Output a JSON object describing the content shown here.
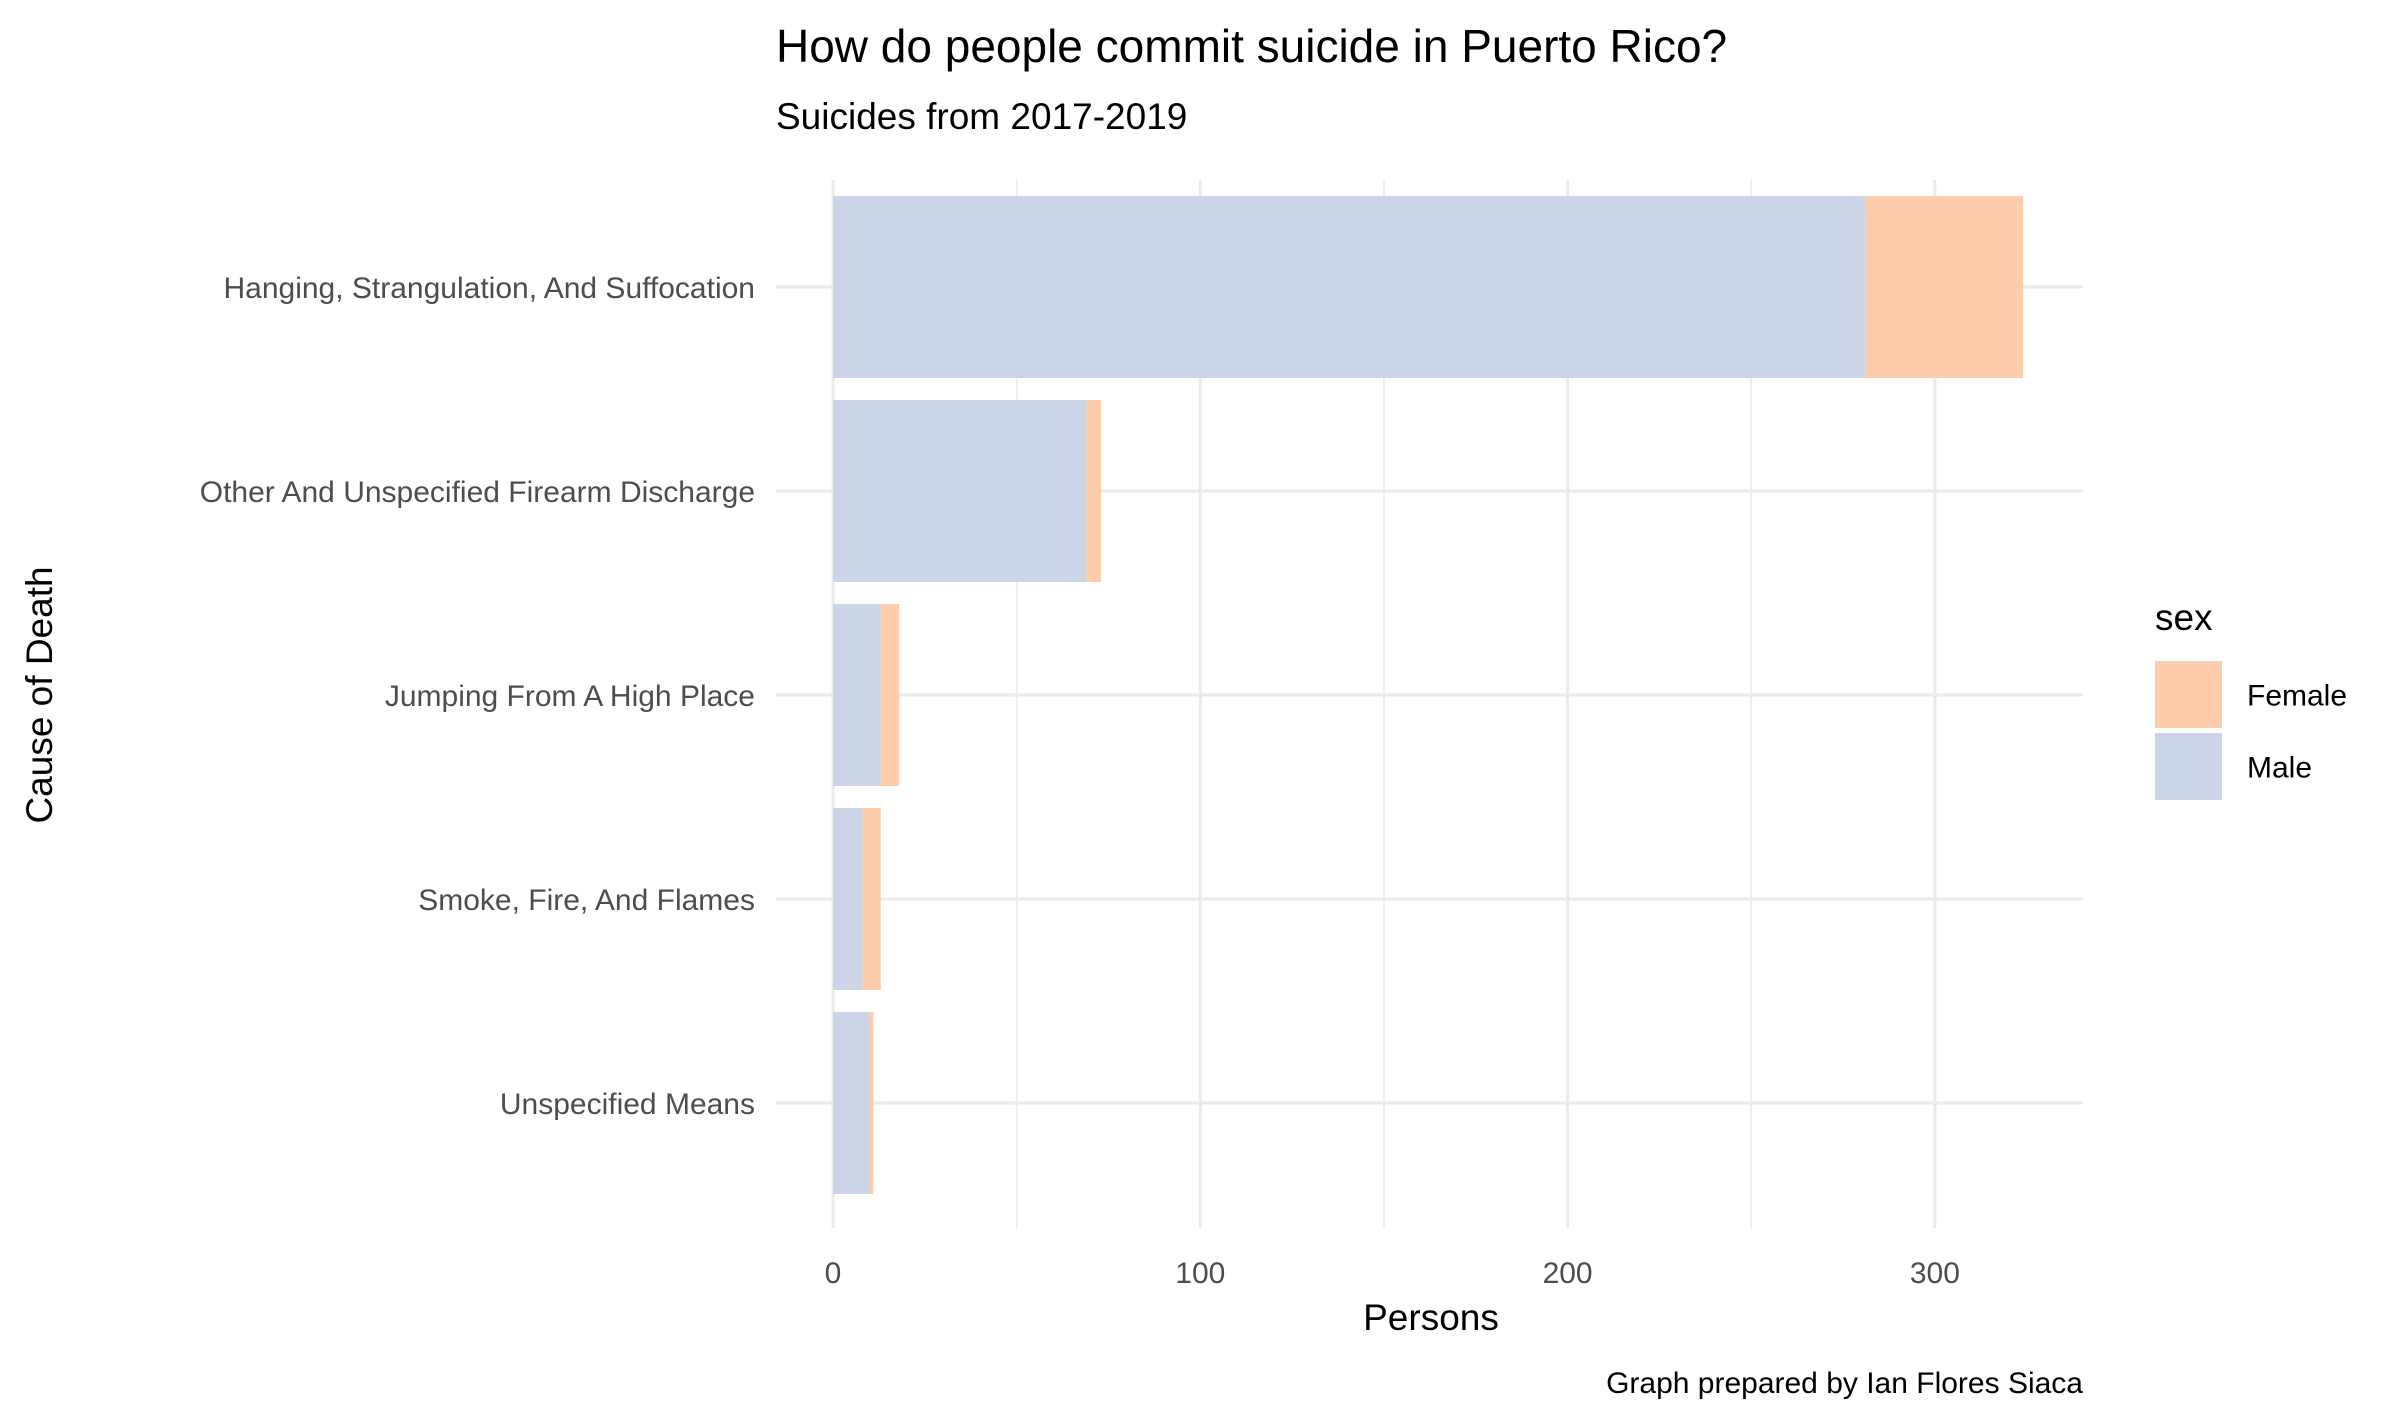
{
  "chart_data": {
    "type": "bar",
    "orientation": "horizontal",
    "stacked": true,
    "title": "How do people commit suicide in Puerto Rico?",
    "subtitle": "Suicides from 2017-2019",
    "xlabel": "Persons",
    "ylabel": "Cause of Death",
    "caption": "Graph prepared by Ian Flores Siaca",
    "categories": [
      "Hanging, Strangulation, And Suffocation",
      "Other And Unspecified Firearm Discharge",
      "Jumping From A High Place",
      "Smoke, Fire, And Flames",
      "Unspecified Means"
    ],
    "series": [
      {
        "name": "Male",
        "values": [
          281,
          69,
          13,
          8,
          10
        ],
        "color": "#cbd5e7"
      },
      {
        "name": "Female",
        "values": [
          43,
          4,
          5,
          5,
          1
        ],
        "color": "#fdcdac"
      }
    ],
    "xlim": [
      0,
      340
    ],
    "xticks": [
      0,
      100,
      200,
      300
    ],
    "xtick_labels": [
      "0",
      "100",
      "200",
      "300"
    ],
    "grid": true,
    "legend": {
      "title": "sex",
      "position": "right",
      "entries": [
        {
          "label": "Female",
          "color": "#fdcdac"
        },
        {
          "label": "Male",
          "color": "#cbd5e7"
        }
      ]
    }
  }
}
